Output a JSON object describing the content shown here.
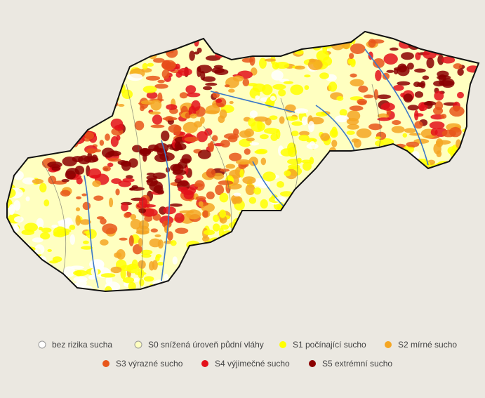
{
  "legend": {
    "items": [
      {
        "label": "bez rizika sucha",
        "color": "#ffffff"
      },
      {
        "label": "S0 snížená úroveň půdní vláhy",
        "color": "#ffffc0"
      },
      {
        "label": "S1 počínající sucho",
        "color": "#ffff00"
      },
      {
        "label": "S2 mírné sucho",
        "color": "#f5a623"
      },
      {
        "label": "S3 výrazné sucho",
        "color": "#e8561a"
      },
      {
        "label": "S4 výjimečné sucho",
        "color": "#e3101a"
      },
      {
        "label": "S5 extrémní sucho",
        "color": "#8b0000"
      }
    ]
  }
}
